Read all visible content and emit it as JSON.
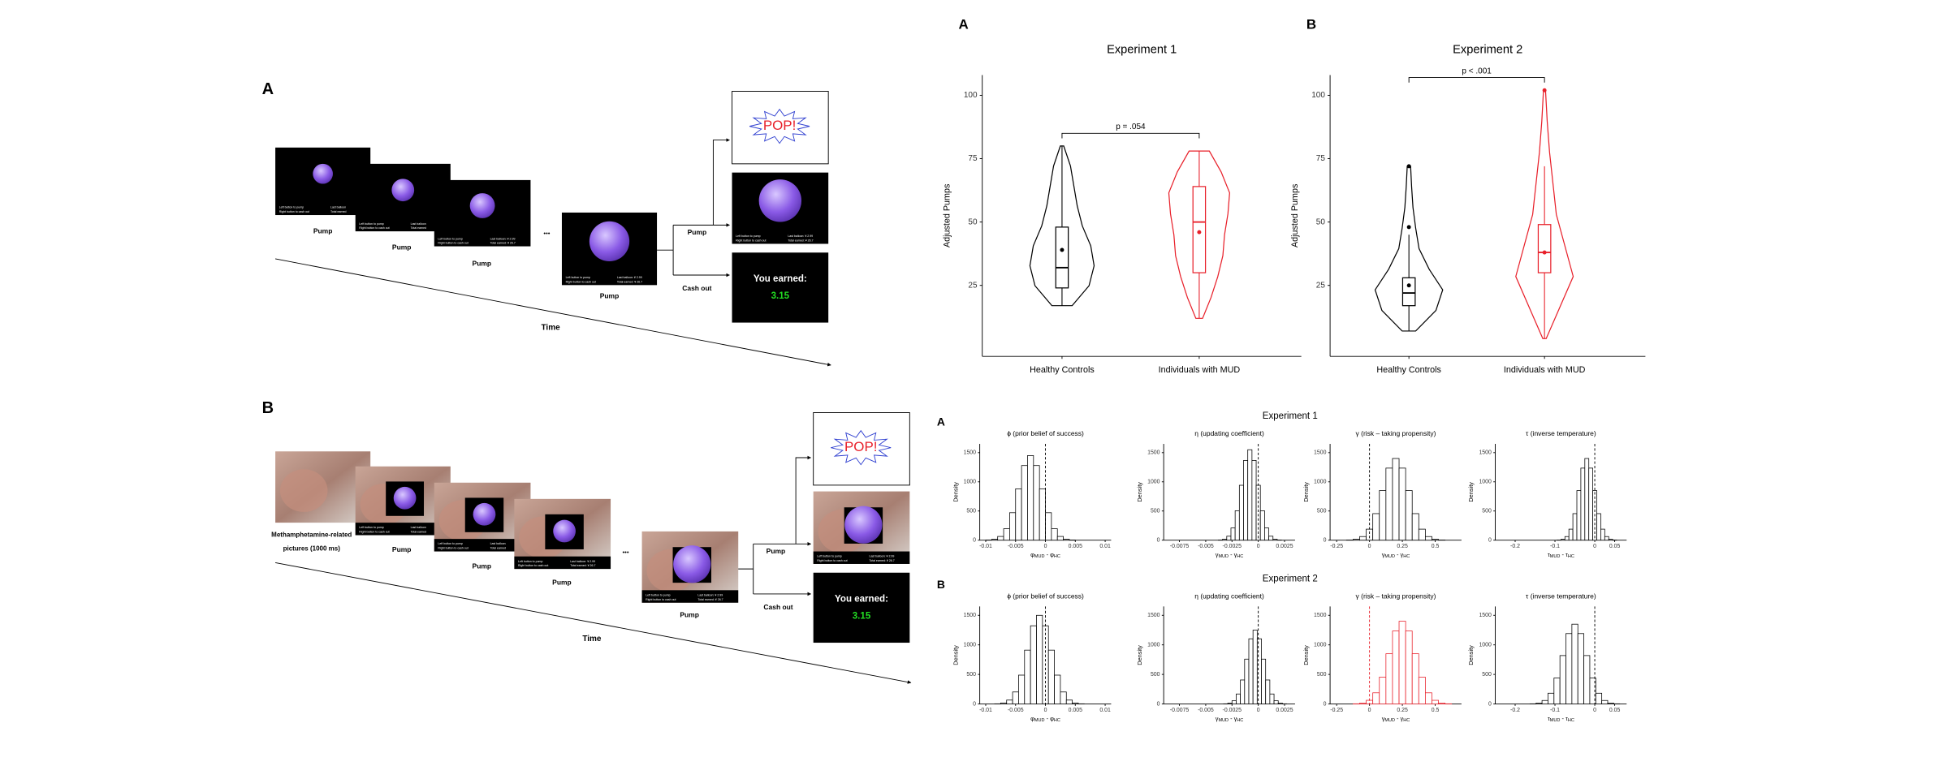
{
  "task": {
    "A": {
      "label": "A",
      "pump": "Pump",
      "cash_out": "Cash out",
      "time": "Time",
      "ellipsis": "•••"
    },
    "B": {
      "label": "B",
      "pump": "Pump",
      "cash_out": "Cash out",
      "time": "Time",
      "ellipsis": "•••",
      "picture_caption": [
        "Methamphetamine-related",
        "pictures (1000 ms)"
      ]
    },
    "screen": {
      "left_1": "Left button to pump",
      "left_2": "Right button to cash out",
      "right_1_first": "Last balloon",
      "right_2_first": "Total earned",
      "right_1": "Last balloon: ¥ 2.99",
      "right_2": "Total earned: ¥ 26.7",
      "pop": "POP!",
      "earned": "You earned:",
      "earned_value": "3.15"
    }
  },
  "violin_charts": [
    {
      "label": "A",
      "title": "Experiment 1",
      "ylabel": "Adjusted Pumps",
      "ylim": [
        -3,
        108
      ],
      "yticks": [
        25,
        50,
        75,
        100
      ],
      "pvalue": "p = .054",
      "groups": [
        {
          "name": "Healthy Controls",
          "color": "#000000",
          "min": 17,
          "max": 80,
          "whisker_low": 17,
          "whisker_high": 80,
          "q1": 24,
          "median": 32,
          "q3": 48,
          "mean": 39,
          "outliers": [],
          "density": [
            0.3,
            0.8,
            0.95,
            0.85,
            0.6,
            0.45,
            0.35,
            0.25,
            0.05
          ]
        },
        {
          "name": "Individuals with MUD",
          "color": "#e8202a",
          "min": 12,
          "max": 78,
          "whisker_low": 12,
          "whisker_high": 78,
          "q1": 30,
          "median": 50,
          "q3": 64,
          "mean": 46,
          "outliers": [],
          "density": [
            0.1,
            0.35,
            0.55,
            0.7,
            0.75,
            0.85,
            0.9,
            0.65,
            0.3
          ]
        }
      ]
    },
    {
      "label": "B",
      "title": "Experiment 2",
      "ylabel": "Adjusted Pumps",
      "ylim": [
        -3,
        108
      ],
      "yticks": [
        25,
        50,
        75,
        100
      ],
      "pvalue": "p < .001",
      "groups": [
        {
          "name": "Healthy Controls",
          "color": "#000000",
          "min": 7,
          "max": 72,
          "whisker_low": 7,
          "whisker_high": 45,
          "q1": 17,
          "median": 22,
          "q3": 28,
          "mean": 25,
          "outliers": [
            72,
            48
          ],
          "density": [
            0.2,
            0.8,
            1,
            0.6,
            0.3,
            0.2,
            0.12,
            0.08,
            0.05
          ]
        },
        {
          "name": "Individuals with MUD",
          "color": "#e8202a",
          "min": 4,
          "max": 102,
          "whisker_low": 4,
          "whisker_high": 72,
          "q1": 30,
          "median": 38,
          "q3": 49,
          "mean": 38,
          "outliers": [
            102
          ],
          "density": [
            0.05,
            0.45,
            0.85,
            0.6,
            0.35,
            0.25,
            0.15,
            0.08,
            0.03
          ]
        }
      ]
    }
  ],
  "posterior": {
    "ylabel": "Density",
    "ylim": [
      0,
      1650
    ],
    "yticks": [
      0,
      500,
      1000,
      1500
    ],
    "rows": [
      {
        "label": "A",
        "title": "Experiment 1",
        "panels": [
          {
            "title": "ϕ (prior belief of success)",
            "xlabel": [
              "φ",
              "MUD",
              " - ",
              "φ",
              "HC"
            ],
            "xlim": [
              -0.011,
              0.011
            ],
            "xticks": [
              -0.01,
              -0.005,
              0,
              0.005,
              0.01
            ],
            "refline": 0,
            "color": "#000000",
            "bins": [
              -0.011,
              -0.01,
              -0.009,
              -0.008,
              -0.007,
              -0.006,
              -0.005,
              -0.004,
              -0.003,
              -0.002,
              -0.001,
              0,
              0.001,
              0.002,
              0.003,
              0.004,
              0.005
            ],
            "counts": [
              0,
              3,
              16,
              64,
              196,
              471,
              880,
              1279,
              1450,
              1279,
              880,
              471,
              196,
              64,
              16,
              3
            ]
          },
          {
            "title": "η (updating coefficient)",
            "xlabel": [
              "γ",
              "MUD",
              " - ",
              "γ",
              "HC"
            ],
            "xlim": [
              -0.009,
              0.0035
            ],
            "xticks": [
              -0.0075,
              -0.005,
              -0.0025,
              0,
              0.0025
            ],
            "refline": 0,
            "color": "#000000",
            "bins": [
              -0.0042,
              -0.0038,
              -0.0034,
              -0.003,
              -0.0026,
              -0.0022,
              -0.0018,
              -0.0014,
              -0.001,
              -0.0006,
              -0.0002,
              0.0002,
              0.0006,
              0.001,
              0.0014,
              0.0018,
              0.0022
            ],
            "counts": [
              0,
              3,
              17,
              68,
              209,
              504,
              941,
              1367,
              1550,
              1367,
              941,
              504,
              209,
              68,
              17,
              3
            ]
          },
          {
            "title": "γ (risk – taking propensity)",
            "xlabel": [
              "γ",
              "MUD",
              " - ",
              "γ",
              "HC"
            ],
            "xlim": [
              -0.3,
              0.7
            ],
            "xticks": [
              -0.25,
              0,
              0.25,
              0.5
            ],
            "refline": 0,
            "color": "#000000",
            "bins": [
              -0.225,
              -0.175,
              -0.125,
              -0.075,
              -0.025,
              0.025,
              0.075,
              0.125,
              0.175,
              0.225,
              0.275,
              0.325,
              0.375,
              0.425,
              0.475,
              0.525,
              0.575
            ],
            "counts": [
              0,
              3,
              15,
              62,
              189,
              455,
              850,
              1235,
              1400,
              1235,
              850,
              455,
              189,
              62,
              15,
              3
            ]
          },
          {
            "title": "τ (inverse temperature)",
            "xlabel": [
              "τ",
              "MUD",
              " - ",
              "τ",
              "HC"
            ],
            "xlim": [
              -0.25,
              0.08
            ],
            "xticks": [
              -0.2,
              -0.1,
              0,
              0.05
            ],
            "refline": 0,
            "color": "#000000",
            "bins": [
              -0.105,
              -0.095,
              -0.085,
              -0.075,
              -0.065,
              -0.055,
              -0.045,
              -0.035,
              -0.025,
              -0.015,
              -0.005,
              0.005,
              0.015,
              0.025,
              0.035,
              0.045,
              0.055
            ],
            "counts": [
              0,
              3,
              15,
              62,
              189,
              455,
              850,
              1235,
              1400,
              1235,
              850,
              455,
              189,
              62,
              15,
              3
            ]
          }
        ]
      },
      {
        "label": "B",
        "title": "Experiment 2",
        "panels": [
          {
            "title": "ϕ (prior belief of success)",
            "xlabel": [
              "φ",
              "MUD",
              " - ",
              "φ",
              "HC"
            ],
            "xlim": [
              -0.011,
              0.011
            ],
            "xticks": [
              -0.01,
              -0.005,
              0,
              0.005,
              0.01
            ],
            "refline": 0,
            "color": "#000000",
            "bins": [
              -0.0095,
              -0.0085,
              -0.0075,
              -0.0065,
              -0.0055,
              -0.0045,
              -0.0035,
              -0.0025,
              -0.0015,
              -0.0005,
              0.0005,
              0.0015,
              0.0025,
              0.0035,
              0.0045,
              0.0055,
              0.0065
            ],
            "counts": [
              0,
              3,
              17,
              66,
              203,
              488,
              911,
              1323,
              1500,
              1323,
              911,
              488,
              203,
              66,
              17,
              3
            ]
          },
          {
            "title": "η (updating coefficient)",
            "xlabel": [
              "γ",
              "MUD",
              " - ",
              "γ",
              "HC"
            ],
            "xlim": [
              -0.009,
              0.0035
            ],
            "xticks": [
              -0.0075,
              -0.005,
              -0.0025,
              0,
              0.0025
            ],
            "refline": 0,
            "color": "#000000",
            "bins": [
              -0.0037,
              -0.0033,
              -0.0029,
              -0.0025,
              -0.0021,
              -0.0017,
              -0.0013,
              -0.0009,
              -0.0005,
              -0.0001,
              0.0003,
              0.0007,
              0.0011,
              0.0015,
              0.0019,
              0.0023,
              0.0027
            ],
            "counts": [
              0,
              3,
              14,
              55,
              169,
              406,
              759,
              1103,
              1250,
              1103,
              759,
              406,
              169,
              55,
              14,
              3
            ]
          },
          {
            "title": "γ (risk – taking propensity)",
            "xlabel": [
              "γ",
              "MUD",
              " - ",
              "γ",
              "HC"
            ],
            "xlim": [
              -0.3,
              0.7
            ],
            "xticks": [
              -0.25,
              0,
              0.25,
              0.5
            ],
            "refline": 0,
            "color": "#e8202a",
            "bins": [
              -0.175,
              -0.125,
              -0.075,
              -0.025,
              0.025,
              0.075,
              0.125,
              0.175,
              0.225,
              0.275,
              0.325,
              0.375,
              0.425,
              0.475,
              0.525,
              0.575,
              0.625
            ],
            "counts": [
              0,
              3,
              15,
              62,
              189,
              455,
              850,
              1235,
              1400,
              1235,
              850,
              455,
              189,
              62,
              15,
              3
            ]
          },
          {
            "title": "τ (inverse temperature)",
            "xlabel": [
              "τ",
              "MUD",
              " - ",
              "τ",
              "HC"
            ],
            "xlim": [
              -0.25,
              0.08
            ],
            "xticks": [
              -0.2,
              -0.1,
              0,
              0.05
            ],
            "refline": 0,
            "color": "#000000",
            "bins": [
              -0.1775,
              -0.1625,
              -0.1475,
              -0.1325,
              -0.1175,
              -0.1025,
              -0.0875,
              -0.0725,
              -0.0575,
              -0.0425,
              -0.0275,
              -0.0125,
              0.0025,
              0.0175,
              0.0325,
              0.0475,
              0.0625
            ],
            "counts": [
              0,
              3,
              15,
              59,
              182,
              439,
              819,
              1191,
              1350,
              1191,
              819,
              439,
              182,
              59,
              15,
              3
            ]
          }
        ]
      }
    ]
  }
}
